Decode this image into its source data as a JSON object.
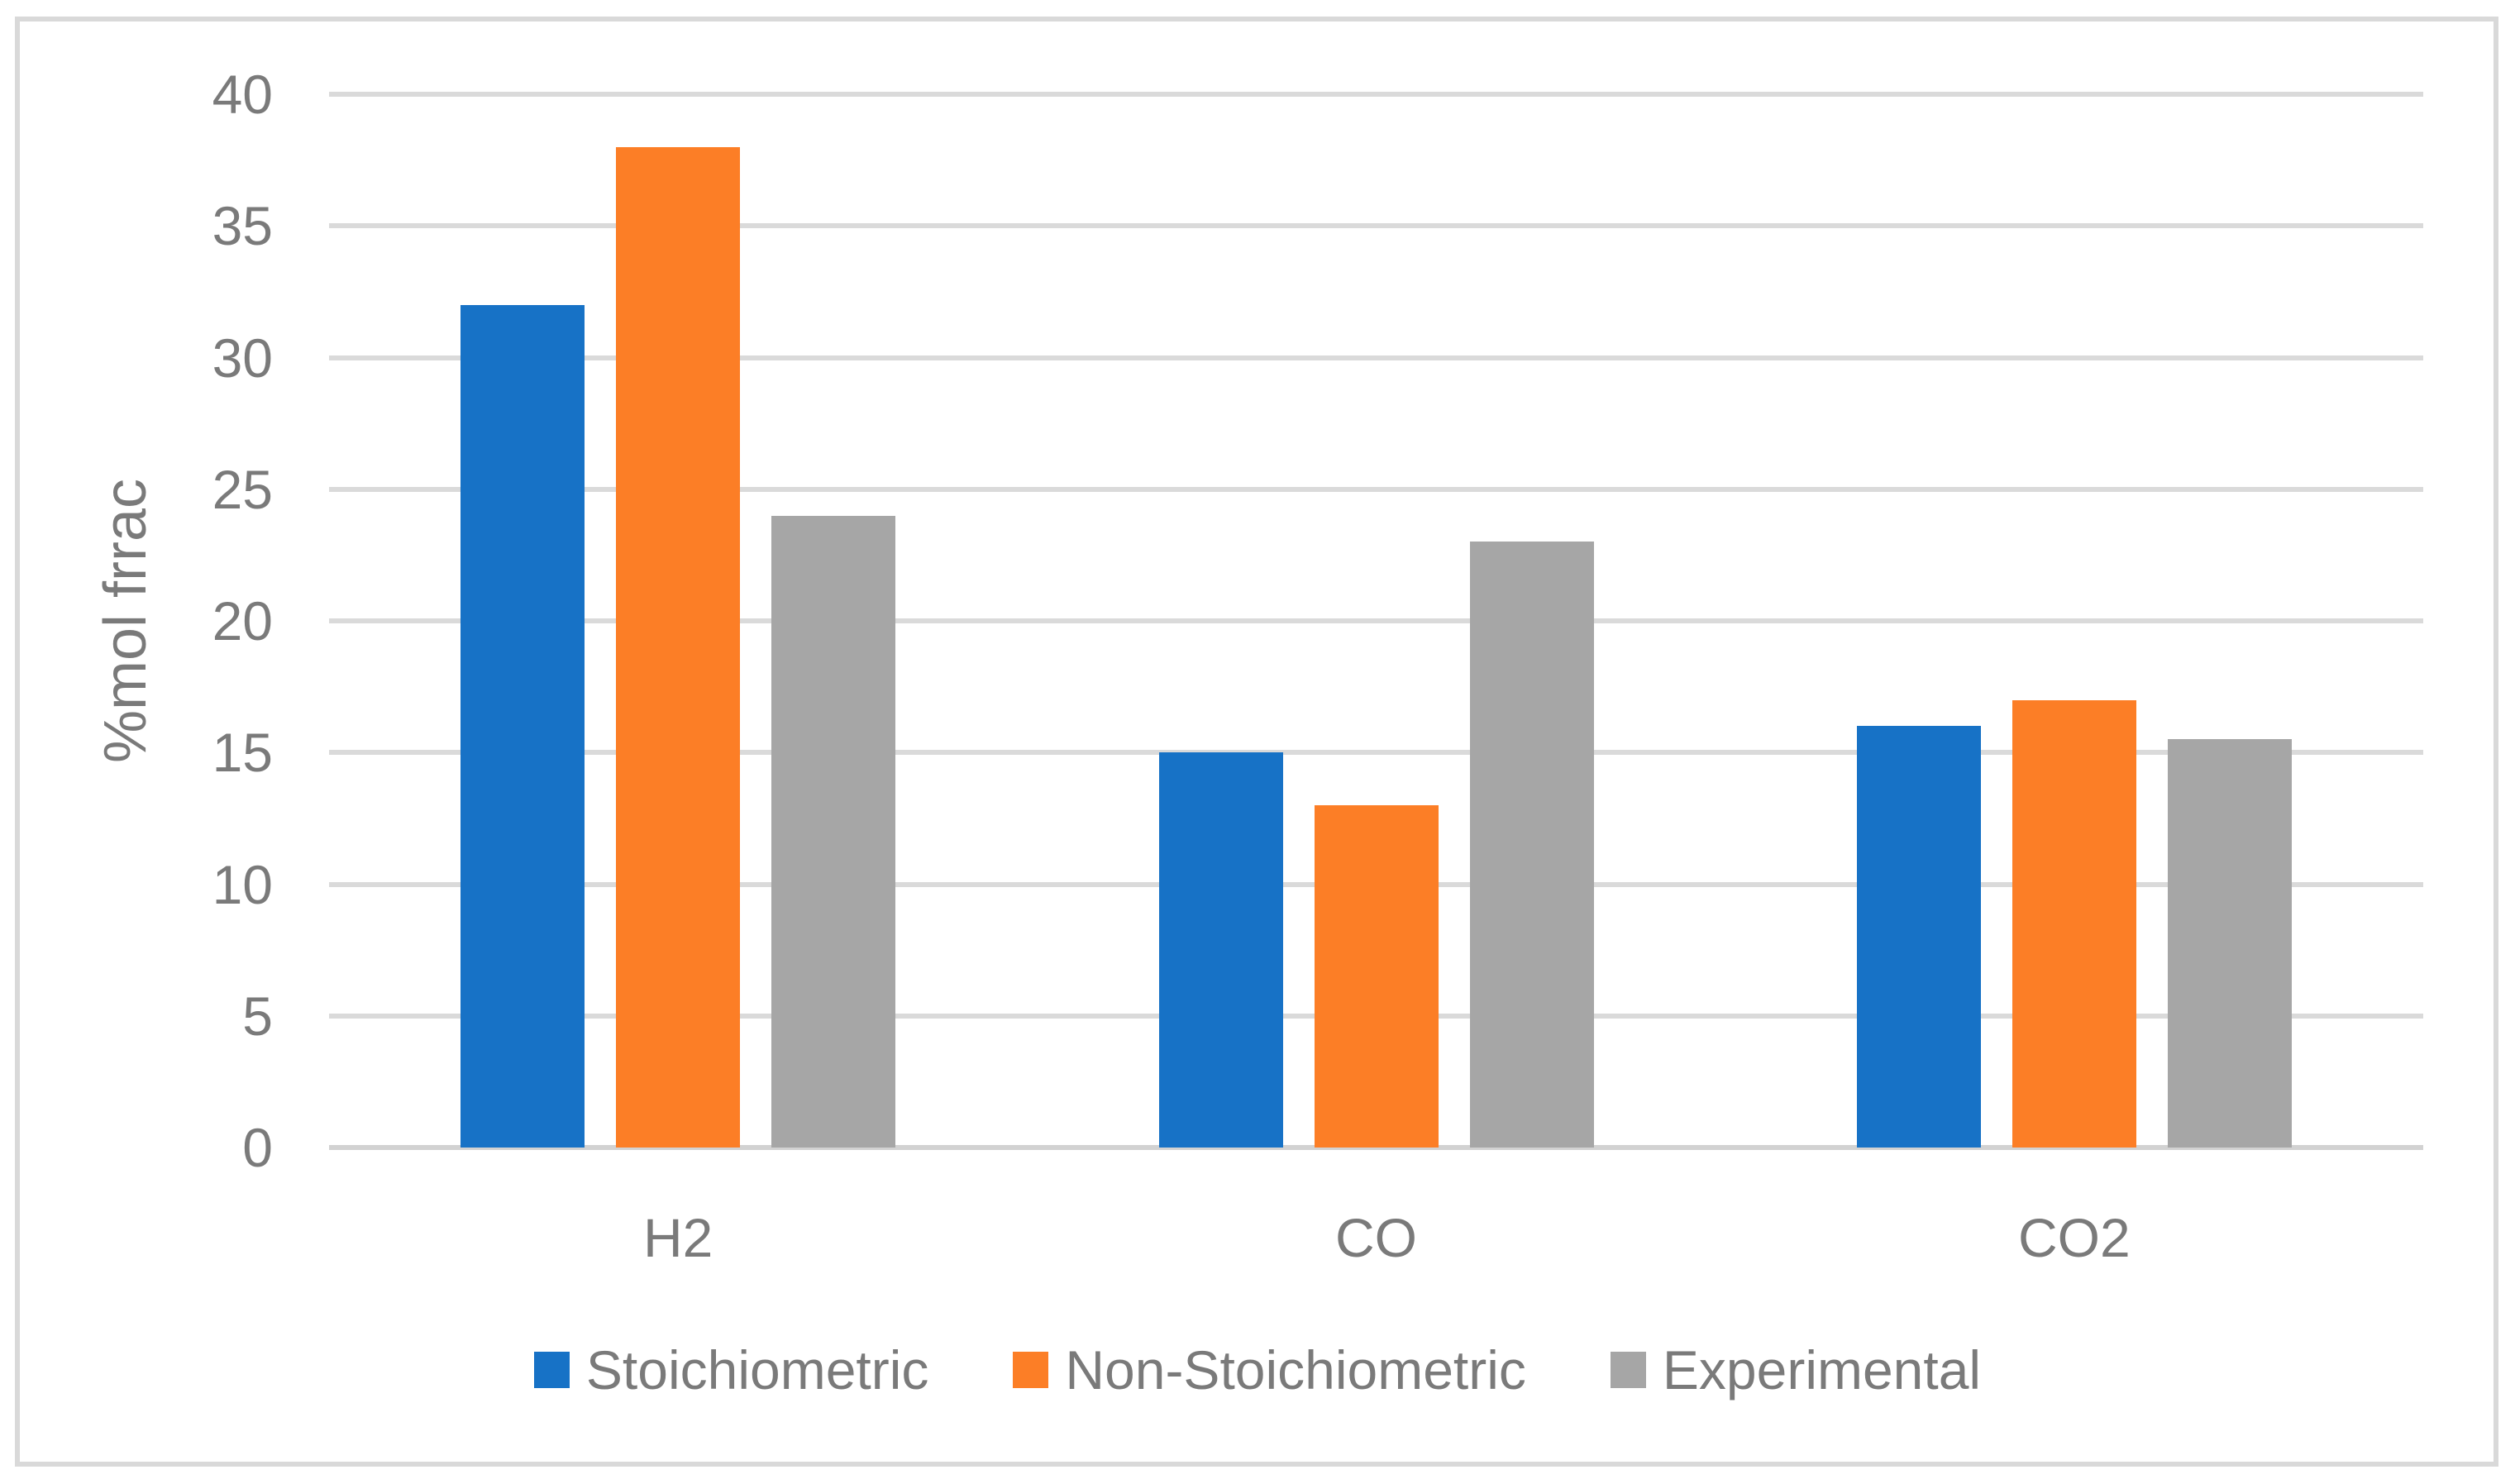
{
  "chart_data": {
    "type": "bar",
    "title": "",
    "categories": [
      "H2",
      "CO",
      "CO2"
    ],
    "series": [
      {
        "name": "Stoichiometric",
        "color": "#1772C6",
        "values": [
          32,
          15,
          16
        ]
      },
      {
        "name": "Non-Stoichiometric",
        "color": "#FC7E26",
        "values": [
          38,
          13,
          17
        ]
      },
      {
        "name": "Experimental",
        "color": "#A6A6A6",
        "values": [
          24,
          23,
          15.5
        ]
      }
    ],
    "xlabel": "",
    "ylabel": "%mol frrac",
    "ylim": [
      0,
      40
    ],
    "yticks": [
      "0",
      "5",
      "10",
      "15",
      "20",
      "25",
      "30",
      "35",
      "40"
    ],
    "ytick_step": 5,
    "grid": true,
    "legend_position": "bottom",
    "colors": {
      "gridline": "#DADADA",
      "axis_line": "#D2D2D2",
      "border": "#D9D9D9",
      "text": "#7A7A7A"
    }
  }
}
